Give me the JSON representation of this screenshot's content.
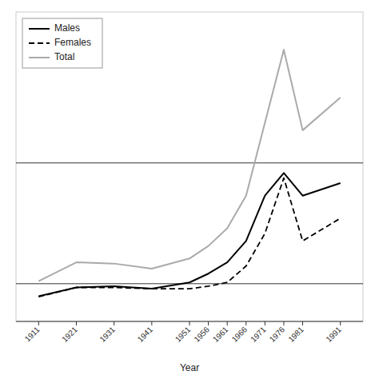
{
  "chart_data": {
    "type": "line",
    "x_label": "Year",
    "x": [
      1911,
      1921,
      1931,
      1941,
      1951,
      1956,
      1961,
      1966,
      1971,
      1976,
      1981,
      1991
    ],
    "series": [
      {
        "name": "Males",
        "color": "#000000",
        "line_style": "solid",
        "values": [
          20,
          55,
          60,
          50,
          75,
          110,
          155,
          240,
          420,
          510,
          420,
          470
        ]
      },
      {
        "name": "Females",
        "color": "#000000",
        "line_style": "dashed",
        "values": [
          18,
          55,
          55,
          50,
          50,
          60,
          75,
          140,
          270,
          490,
          240,
          330
        ]
      },
      {
        "name": "Total",
        "color": "#aaaaaa",
        "line_style": "solid",
        "values": [
          80,
          155,
          150,
          130,
          170,
          220,
          290,
          420,
          710,
          1000,
          680,
          810
        ]
      }
    ],
    "hlines": [
      70,
      550
    ],
    "xlim": [
      1905,
      1997
    ],
    "xticks": [
      1911,
      1921,
      1931,
      1941,
      1951,
      1956,
      1961,
      1966,
      1971,
      1976,
      1981,
      1991
    ],
    "ylim": [
      -80,
      1150
    ],
    "tick_labels": "x",
    "grid": false,
    "legend": "upper left"
  }
}
